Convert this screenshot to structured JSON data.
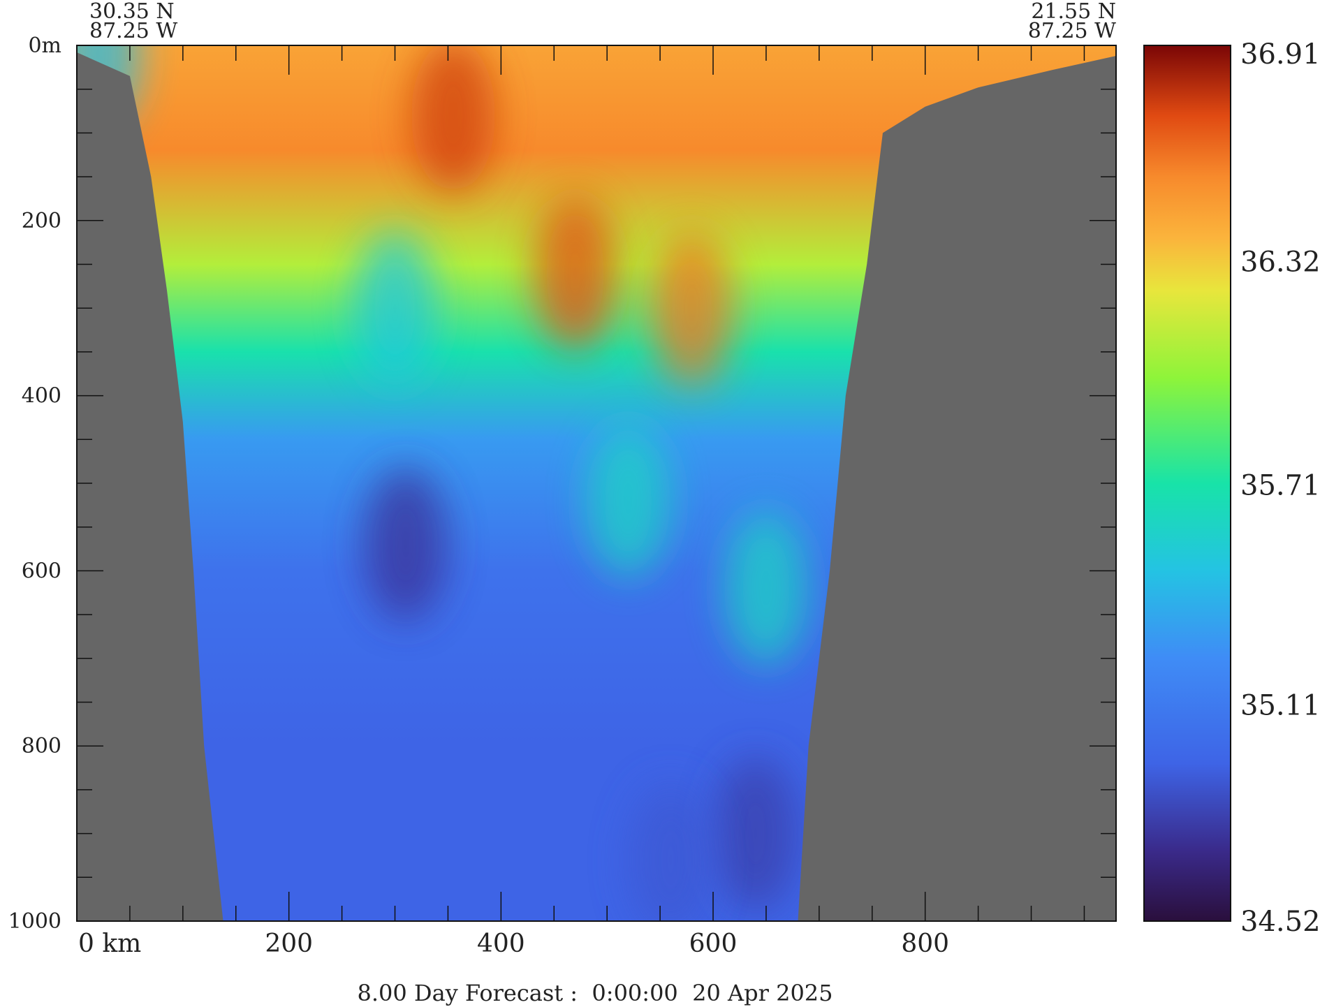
{
  "chart_data": {
    "type": "heatmap",
    "title": "8.00 Day Forecast :  0:00:00  20 Apr 2025",
    "corner_labels": {
      "left_lat": "30.35 N",
      "left_lon": "87.25 W",
      "right_lat": "21.55 N",
      "right_lon": "87.25 W"
    },
    "x_axis": {
      "range": [
        0,
        980
      ],
      "ticks": [
        0,
        200,
        400,
        600,
        800
      ],
      "tick_labels": [
        "0 km",
        "200",
        "400",
        "600",
        "800"
      ]
    },
    "y_axis": {
      "range": [
        0,
        1000
      ],
      "inverted": true,
      "ticks": [
        0,
        200,
        400,
        600,
        800,
        1000
      ],
      "tick_labels": [
        "0m",
        "200",
        "400",
        "600",
        "800",
        "1000"
      ]
    },
    "colorbar": {
      "min": 34.52,
      "max": 36.91,
      "tick_values": [
        36.91,
        36.32,
        35.71,
        35.11,
        34.52
      ],
      "tick_labels": [
        "36.91",
        "36.32",
        "35.71",
        "35.11",
        "34.52"
      ]
    },
    "land_color": "#666666",
    "bathymetry": {
      "left_wall": [
        [
          0,
          8
        ],
        [
          50,
          35
        ],
        [
          70,
          150
        ],
        [
          85,
          280
        ],
        [
          100,
          430
        ],
        [
          110,
          600
        ],
        [
          120,
          800
        ],
        [
          138,
          1000
        ]
      ],
      "right_wall": [
        [
          680,
          1000
        ],
        [
          690,
          800
        ],
        [
          710,
          600
        ],
        [
          725,
          400
        ],
        [
          745,
          250
        ],
        [
          760,
          100
        ],
        [
          800,
          70
        ],
        [
          850,
          48
        ],
        [
          920,
          28
        ],
        [
          980,
          12
        ]
      ]
    },
    "salinity_layers": [
      {
        "depth": 0,
        "value": 36.45
      },
      {
        "depth": 120,
        "value": 36.55
      },
      {
        "depth": 250,
        "value": 36.1
      },
      {
        "depth": 350,
        "value": 35.7
      },
      {
        "depth": 450,
        "value": 35.3
      },
      {
        "depth": 600,
        "value": 35.05
      },
      {
        "depth": 800,
        "value": 34.95
      },
      {
        "depth": 1000,
        "value": 34.95
      }
    ],
    "features": [
      {
        "x": 20,
        "depth": 10,
        "value": 35.45
      },
      {
        "x": 355,
        "depth": 80,
        "value": 36.75
      },
      {
        "x": 470,
        "depth": 260,
        "value": 36.7
      },
      {
        "x": 580,
        "depth": 300,
        "value": 36.6
      },
      {
        "x": 300,
        "depth": 300,
        "value": 35.5
      },
      {
        "x": 520,
        "depth": 520,
        "value": 35.6
      },
      {
        "x": 650,
        "depth": 620,
        "value": 35.6
      },
      {
        "x": 310,
        "depth": 570,
        "value": 34.75
      },
      {
        "x": 640,
        "depth": 900,
        "value": 34.8
      },
      {
        "x": 560,
        "depth": 930,
        "value": 34.9
      }
    ]
  }
}
